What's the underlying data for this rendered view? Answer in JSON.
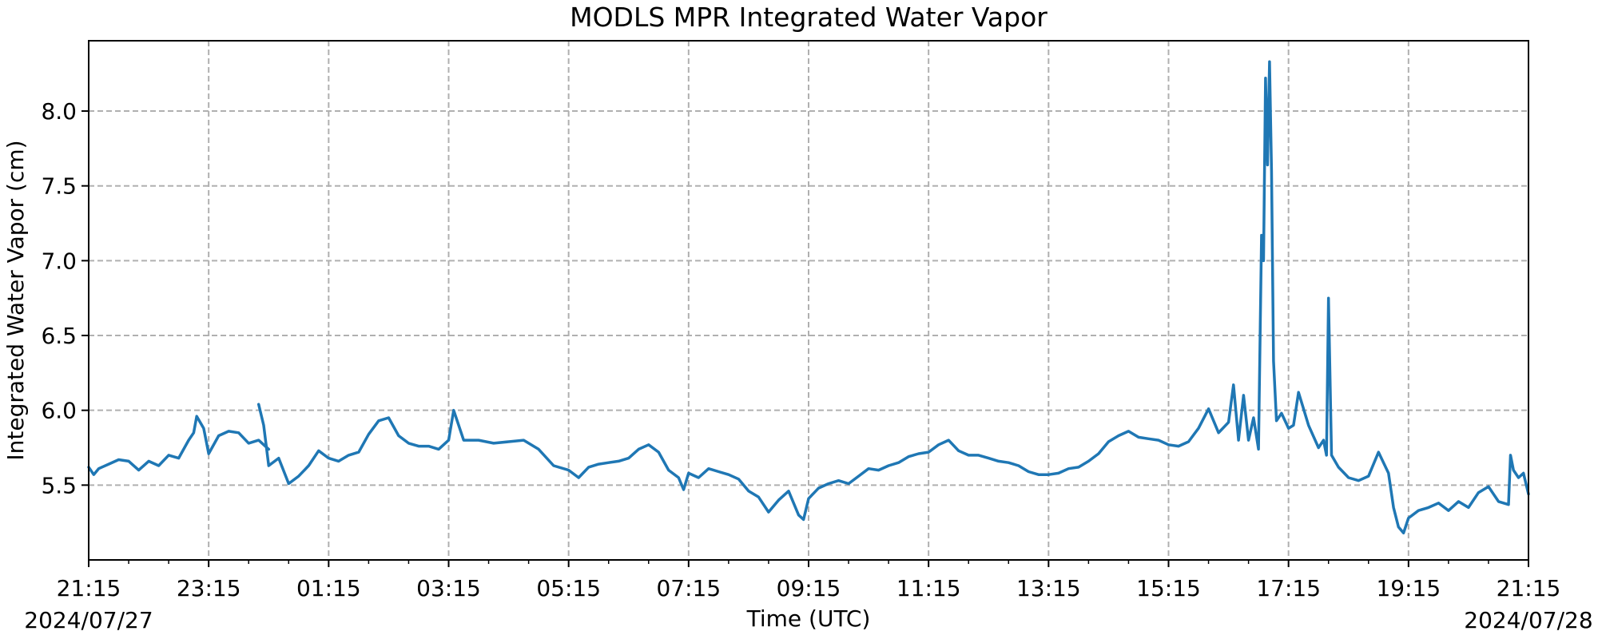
{
  "chart_data": {
    "type": "line",
    "title": "MODLS MPR Integrated Water Vapor",
    "xlabel": "Time (UTC)",
    "ylabel": "Integrated Water Vapor (cm)",
    "x_start": "2024-07-27T21:15",
    "x_end": "2024-07-28T21:15",
    "x_tick_labels": [
      "21:15",
      "23:15",
      "01:15",
      "03:15",
      "05:15",
      "07:15",
      "09:15",
      "11:15",
      "13:15",
      "15:15",
      "17:15",
      "19:15",
      "21:15"
    ],
    "x_date_labels": {
      "left": "2024/07/27",
      "right": "2024/07/28"
    },
    "ylim": [
      5.0,
      8.47
    ],
    "y_ticks": [
      5.5,
      6.0,
      6.5,
      7.0,
      7.5,
      8.0
    ],
    "y_tick_labels": [
      "5.5",
      "6.0",
      "6.5",
      "7.0",
      "7.5",
      "8.0"
    ],
    "grid": true,
    "grid_style": "dashed",
    "line_color": "#1f77b4",
    "series": [
      {
        "segments": [
          [
            [
              "2024-07-27T21:15",
              5.62
            ],
            [
              "2024-07-27T21:20",
              5.57
            ],
            [
              "2024-07-27T21:25",
              5.61
            ],
            [
              "2024-07-27T21:35",
              5.64
            ],
            [
              "2024-07-27T21:45",
              5.67
            ],
            [
              "2024-07-27T21:55",
              5.66
            ],
            [
              "2024-07-27T22:05",
              5.6
            ],
            [
              "2024-07-27T22:15",
              5.66
            ],
            [
              "2024-07-27T22:25",
              5.63
            ],
            [
              "2024-07-27T22:35",
              5.7
            ],
            [
              "2024-07-27T22:45",
              5.68
            ],
            [
              "2024-07-27T22:55",
              5.8
            ],
            [
              "2024-07-27T23:00",
              5.85
            ],
            [
              "2024-07-27T23:03",
              5.96
            ],
            [
              "2024-07-27T23:10",
              5.88
            ],
            [
              "2024-07-27T23:15",
              5.71
            ],
            [
              "2024-07-27T23:25",
              5.83
            ],
            [
              "2024-07-27T23:35",
              5.86
            ],
            [
              "2024-07-27T23:45",
              5.85
            ],
            [
              "2024-07-27T23:55",
              5.78
            ],
            [
              "2024-07-28T00:05",
              5.8
            ],
            [
              "2024-07-28T00:15",
              5.74
            ]
          ],
          [
            [
              "2024-07-28T00:05",
              6.04
            ],
            [
              "2024-07-28T00:10",
              5.9
            ],
            [
              "2024-07-28T00:15",
              5.63
            ],
            [
              "2024-07-28T00:25",
              5.68
            ],
            [
              "2024-07-28T00:35",
              5.51
            ],
            [
              "2024-07-28T00:45",
              5.56
            ],
            [
              "2024-07-28T00:55",
              5.63
            ],
            [
              "2024-07-28T01:05",
              5.73
            ],
            [
              "2024-07-28T01:15",
              5.68
            ],
            [
              "2024-07-28T01:25",
              5.66
            ],
            [
              "2024-07-28T01:35",
              5.7
            ],
            [
              "2024-07-28T01:45",
              5.72
            ],
            [
              "2024-07-28T01:55",
              5.84
            ],
            [
              "2024-07-28T02:05",
              5.93
            ],
            [
              "2024-07-28T02:15",
              5.95
            ],
            [
              "2024-07-28T02:25",
              5.83
            ],
            [
              "2024-07-28T02:35",
              5.78
            ],
            [
              "2024-07-28T02:45",
              5.76
            ],
            [
              "2024-07-28T02:55",
              5.76
            ],
            [
              "2024-07-28T03:05",
              5.74
            ],
            [
              "2024-07-28T03:15",
              5.8
            ],
            [
              "2024-07-28T03:20",
              6.0
            ],
            [
              "2024-07-28T03:30",
              5.8
            ],
            [
              "2024-07-28T03:45",
              5.8
            ],
            [
              "2024-07-28T04:00",
              5.78
            ],
            [
              "2024-07-28T04:15",
              5.79
            ],
            [
              "2024-07-28T04:30",
              5.8
            ],
            [
              "2024-07-28T04:45",
              5.74
            ],
            [
              "2024-07-28T05:00",
              5.63
            ],
            [
              "2024-07-28T05:15",
              5.6
            ],
            [
              "2024-07-28T05:25",
              5.55
            ],
            [
              "2024-07-28T05:35",
              5.62
            ],
            [
              "2024-07-28T05:45",
              5.64
            ],
            [
              "2024-07-28T05:55",
              5.65
            ],
            [
              "2024-07-28T06:05",
              5.66
            ],
            [
              "2024-07-28T06:15",
              5.68
            ],
            [
              "2024-07-28T06:25",
              5.74
            ],
            [
              "2024-07-28T06:35",
              5.77
            ],
            [
              "2024-07-28T06:45",
              5.72
            ],
            [
              "2024-07-28T06:55",
              5.6
            ],
            [
              "2024-07-28T07:05",
              5.55
            ],
            [
              "2024-07-28T07:10",
              5.47
            ],
            [
              "2024-07-28T07:15",
              5.58
            ],
            [
              "2024-07-28T07:25",
              5.55
            ],
            [
              "2024-07-28T07:35",
              5.61
            ],
            [
              "2024-07-28T07:45",
              5.59
            ],
            [
              "2024-07-28T07:55",
              5.57
            ],
            [
              "2024-07-28T08:05",
              5.54
            ],
            [
              "2024-07-28T08:15",
              5.46
            ],
            [
              "2024-07-28T08:25",
              5.42
            ],
            [
              "2024-07-28T08:35",
              5.32
            ],
            [
              "2024-07-28T08:45",
              5.4
            ],
            [
              "2024-07-28T08:55",
              5.46
            ],
            [
              "2024-07-28T09:05",
              5.3
            ],
            [
              "2024-07-28T09:10",
              5.27
            ],
            [
              "2024-07-28T09:15",
              5.41
            ],
            [
              "2024-07-28T09:25",
              5.48
            ],
            [
              "2024-07-28T09:35",
              5.51
            ],
            [
              "2024-07-28T09:45",
              5.53
            ],
            [
              "2024-07-28T09:55",
              5.51
            ],
            [
              "2024-07-28T10:05",
              5.56
            ],
            [
              "2024-07-28T10:15",
              5.61
            ],
            [
              "2024-07-28T10:25",
              5.6
            ],
            [
              "2024-07-28T10:35",
              5.63
            ],
            [
              "2024-07-28T10:45",
              5.65
            ],
            [
              "2024-07-28T10:55",
              5.69
            ],
            [
              "2024-07-28T11:05",
              5.71
            ],
            [
              "2024-07-28T11:15",
              5.72
            ],
            [
              "2024-07-28T11:25",
              5.77
            ],
            [
              "2024-07-28T11:35",
              5.8
            ],
            [
              "2024-07-28T11:45",
              5.73
            ],
            [
              "2024-07-28T11:55",
              5.7
            ],
            [
              "2024-07-28T12:05",
              5.7
            ],
            [
              "2024-07-28T12:15",
              5.68
            ],
            [
              "2024-07-28T12:25",
              5.66
            ],
            [
              "2024-07-28T12:35",
              5.65
            ],
            [
              "2024-07-28T12:45",
              5.63
            ],
            [
              "2024-07-28T12:55",
              5.59
            ],
            [
              "2024-07-28T13:05",
              5.57
            ],
            [
              "2024-07-28T13:15",
              5.57
            ],
            [
              "2024-07-28T13:25",
              5.58
            ],
            [
              "2024-07-28T13:35",
              5.61
            ],
            [
              "2024-07-28T13:45",
              5.62
            ],
            [
              "2024-07-28T13:55",
              5.66
            ],
            [
              "2024-07-28T14:05",
              5.71
            ],
            [
              "2024-07-28T14:15",
              5.79
            ],
            [
              "2024-07-28T14:25",
              5.83
            ],
            [
              "2024-07-28T14:35",
              5.86
            ],
            [
              "2024-07-28T14:45",
              5.82
            ],
            [
              "2024-07-28T14:55",
              5.81
            ],
            [
              "2024-07-28T15:05",
              5.8
            ],
            [
              "2024-07-28T15:15",
              5.77
            ],
            [
              "2024-07-28T15:25",
              5.76
            ],
            [
              "2024-07-28T15:35",
              5.79
            ],
            [
              "2024-07-28T15:45",
              5.88
            ],
            [
              "2024-07-28T15:55",
              6.01
            ],
            [
              "2024-07-28T16:05",
              5.85
            ],
            [
              "2024-07-28T16:15",
              5.92
            ],
            [
              "2024-07-28T16:20",
              6.17
            ],
            [
              "2024-07-28T16:25",
              5.8
            ],
            [
              "2024-07-28T16:30",
              6.1
            ],
            [
              "2024-07-28T16:35",
              5.8
            ],
            [
              "2024-07-28T16:40",
              5.95
            ],
            [
              "2024-07-28T16:45",
              5.74
            ],
            [
              "2024-07-28T16:48",
              7.17
            ],
            [
              "2024-07-28T16:50",
              7.0
            ],
            [
              "2024-07-28T16:52",
              8.22
            ],
            [
              "2024-07-28T16:54",
              7.64
            ],
            [
              "2024-07-28T16:56",
              8.33
            ],
            [
              "2024-07-28T16:58",
              7.6
            ],
            [
              "2024-07-28T17:00",
              6.33
            ],
            [
              "2024-07-28T17:03",
              5.93
            ],
            [
              "2024-07-28T17:08",
              5.98
            ],
            [
              "2024-07-28T17:15",
              5.88
            ],
            [
              "2024-07-28T17:20",
              5.9
            ],
            [
              "2024-07-28T17:25",
              6.12
            ],
            [
              "2024-07-28T17:35",
              5.9
            ],
            [
              "2024-07-28T17:45",
              5.75
            ],
            [
              "2024-07-28T17:50",
              5.8
            ],
            [
              "2024-07-28T17:53",
              5.7
            ],
            [
              "2024-07-28T17:55",
              6.75
            ],
            [
              "2024-07-28T17:58",
              5.7
            ],
            [
              "2024-07-28T18:05",
              5.62
            ],
            [
              "2024-07-28T18:15",
              5.55
            ],
            [
              "2024-07-28T18:25",
              5.53
            ],
            [
              "2024-07-28T18:35",
              5.56
            ],
            [
              "2024-07-28T18:45",
              5.72
            ],
            [
              "2024-07-28T18:55",
              5.58
            ],
            [
              "2024-07-28T19:00",
              5.35
            ],
            [
              "2024-07-28T19:05",
              5.22
            ],
            [
              "2024-07-28T19:10",
              5.18
            ],
            [
              "2024-07-28T19:15",
              5.28
            ],
            [
              "2024-07-28T19:25",
              5.33
            ],
            [
              "2024-07-28T19:35",
              5.35
            ],
            [
              "2024-07-28T19:45",
              5.38
            ],
            [
              "2024-07-28T19:55",
              5.33
            ],
            [
              "2024-07-28T20:05",
              5.39
            ],
            [
              "2024-07-28T20:15",
              5.35
            ],
            [
              "2024-07-28T20:25",
              5.45
            ],
            [
              "2024-07-28T20:35",
              5.49
            ],
            [
              "2024-07-28T20:45",
              5.39
            ],
            [
              "2024-07-28T20:55",
              5.37
            ],
            [
              "2024-07-28T20:57",
              5.7
            ],
            [
              "2024-07-28T21:00",
              5.6
            ],
            [
              "2024-07-28T21:05",
              5.55
            ],
            [
              "2024-07-28T21:10",
              5.58
            ],
            [
              "2024-07-28T21:15",
              5.44
            ]
          ]
        ]
      }
    ]
  }
}
